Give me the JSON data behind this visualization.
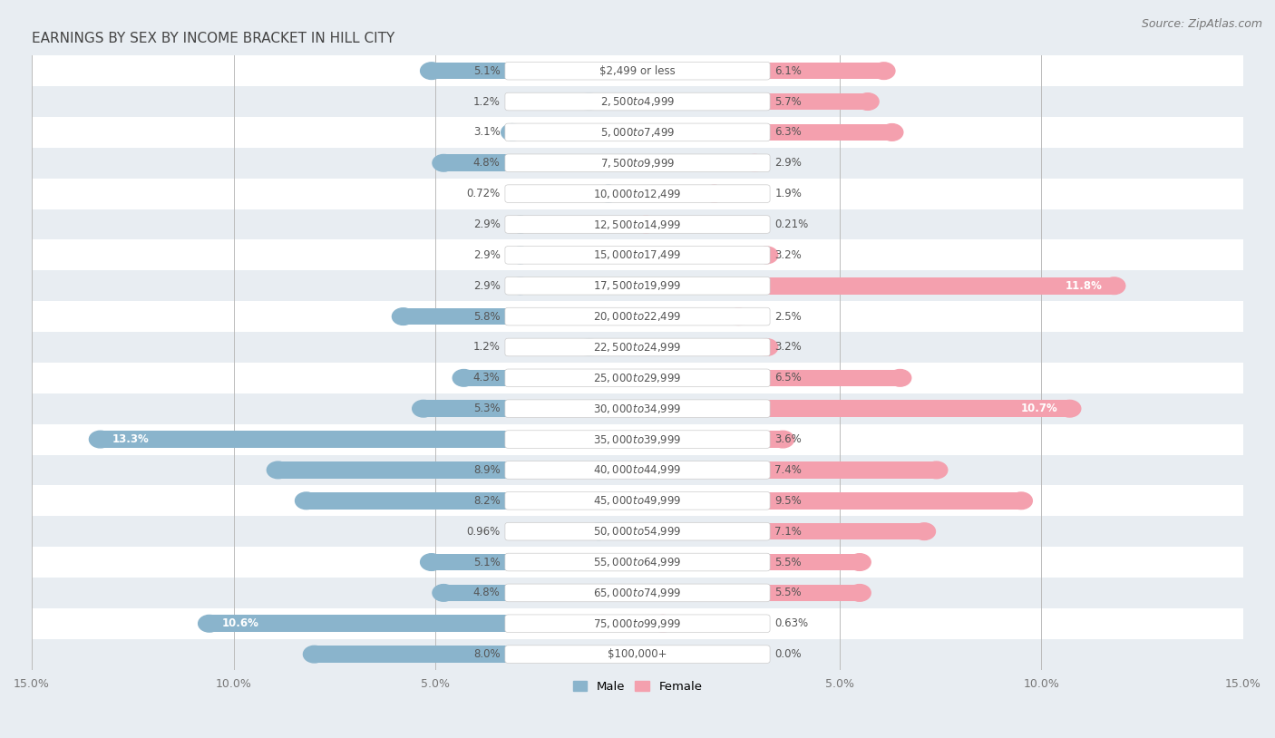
{
  "title": "EARNINGS BY SEX BY INCOME BRACKET IN HILL CITY",
  "source": "Source: ZipAtlas.com",
  "categories": [
    "$2,499 or less",
    "$2,500 to $4,999",
    "$5,000 to $7,499",
    "$7,500 to $9,999",
    "$10,000 to $12,499",
    "$12,500 to $14,999",
    "$15,000 to $17,499",
    "$17,500 to $19,999",
    "$20,000 to $22,499",
    "$22,500 to $24,999",
    "$25,000 to $29,999",
    "$30,000 to $34,999",
    "$35,000 to $39,999",
    "$40,000 to $44,999",
    "$45,000 to $49,999",
    "$50,000 to $54,999",
    "$55,000 to $64,999",
    "$65,000 to $74,999",
    "$75,000 to $99,999",
    "$100,000+"
  ],
  "male_values": [
    5.1,
    1.2,
    3.1,
    4.8,
    0.72,
    2.9,
    2.9,
    2.9,
    5.8,
    1.2,
    4.3,
    5.3,
    13.3,
    8.9,
    8.2,
    0.96,
    5.1,
    4.8,
    10.6,
    8.0
  ],
  "female_values": [
    6.1,
    5.7,
    6.3,
    2.9,
    1.9,
    0.21,
    3.2,
    11.8,
    2.5,
    3.2,
    6.5,
    10.7,
    3.6,
    7.4,
    9.5,
    7.1,
    5.5,
    5.5,
    0.63,
    0.0
  ],
  "male_color": "#8ab4cc",
  "female_color": "#f4a0ae",
  "male_label": "Male",
  "female_label": "Female",
  "xlim": 15.0,
  "row_color_even": "#ffffff",
  "row_color_odd": "#e8edf2",
  "title_fontsize": 11,
  "source_fontsize": 9,
  "label_fontsize": 8.5,
  "tick_fontsize": 9,
  "cat_label_fontsize": 8.5,
  "val_label_fontsize": 8.5
}
